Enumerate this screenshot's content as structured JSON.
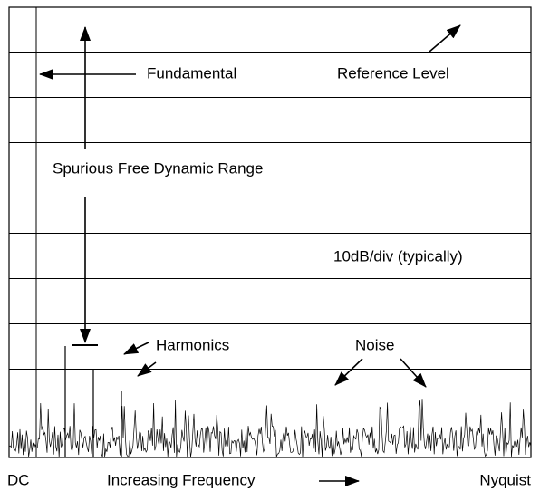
{
  "labels": {
    "fundamental": "Fundamental",
    "reference_level": "Reference Level",
    "sfdr": "Spurious Free Dynamic Range",
    "scale": "10dB/div (typically)",
    "harmonics": "Harmonics",
    "noise": "Noise",
    "dc": "DC",
    "frequency": "Increasing Frequency",
    "nyquist": "Nyquist"
  }
}
